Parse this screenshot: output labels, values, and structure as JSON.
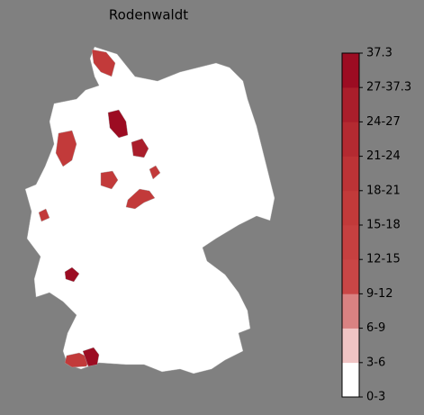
{
  "map": {
    "title": "Rodenwaldt",
    "legend": {
      "labels": [
        "0-3",
        "3-6",
        "6-9",
        "9-12",
        "12-15",
        "15-18",
        "18-21",
        "21-24",
        "24-27",
        "27-37.3",
        "37.3"
      ],
      "colors": [
        "#ffffff",
        "#f0c4c4",
        "#d98282",
        "#c94646",
        "#c64040",
        "#c23a3a",
        "#bc3336",
        "#b42a31",
        "#aa1e2b",
        "#9c0c22"
      ]
    }
  }
}
